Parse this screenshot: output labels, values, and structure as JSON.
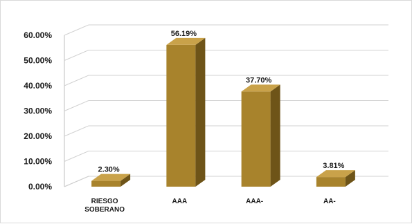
{
  "chart_data": {
    "type": "bar",
    "categories": [
      [
        "RIESGO",
        "SOBERANO"
      ],
      [
        "AAA"
      ],
      [
        "AAA-"
      ],
      [
        "AA-"
      ]
    ],
    "values": [
      2.3,
      56.19,
      37.7,
      3.81
    ],
    "value_labels": [
      "2.30%",
      "56.19%",
      "37.70%",
      "3.81%"
    ],
    "yticks": [
      "0.00%",
      "10.00%",
      "20.00%",
      "30.00%",
      "40.00%",
      "50.00%",
      "60.00%"
    ],
    "ylim": [
      0,
      60
    ],
    "grid": true,
    "three_d": true,
    "legend": "none",
    "colors": {
      "bar_front": "#a8832c",
      "bar_top": "#c9a24a",
      "bar_side": "#6e5418",
      "grid": "#d0d0d0",
      "wall": "#bfbfbf"
    }
  }
}
